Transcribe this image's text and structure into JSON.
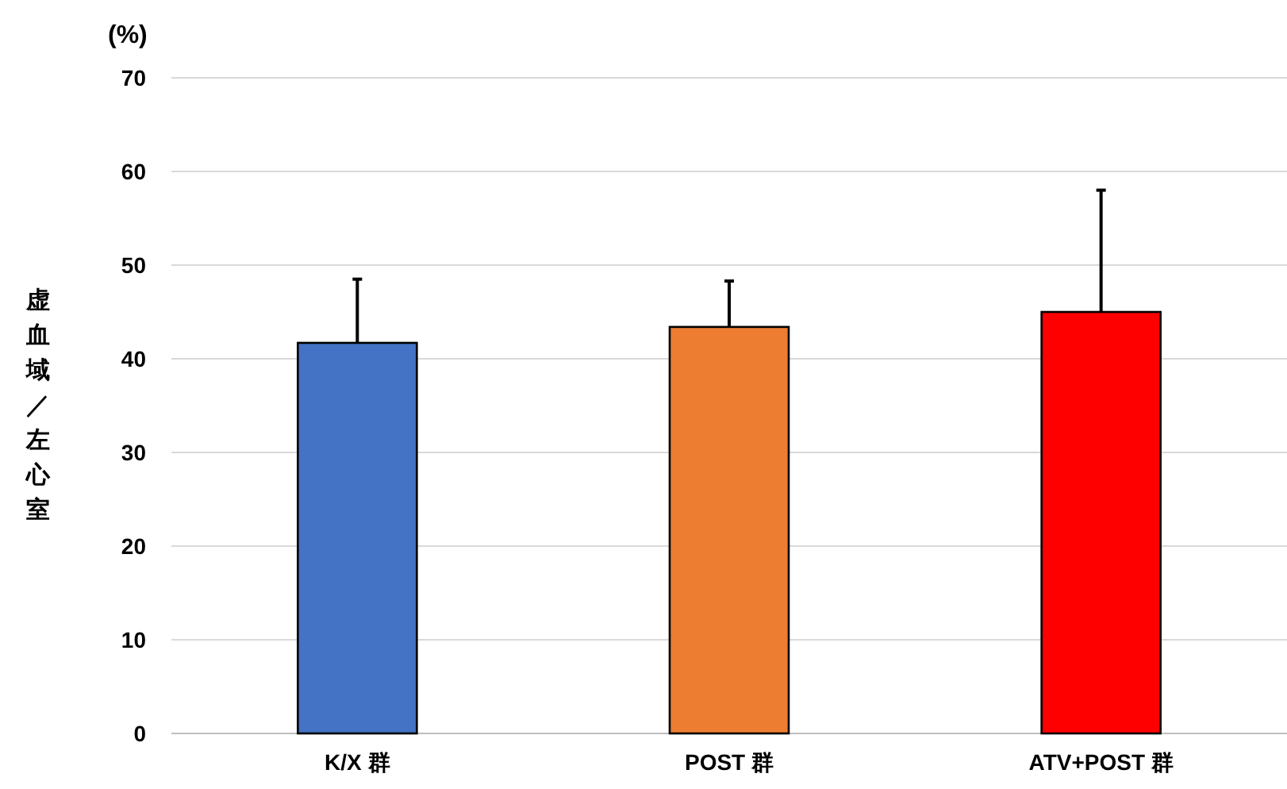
{
  "chart_data": {
    "type": "bar",
    "ylabel": "虚血域／左心室",
    "annotations": [
      "(%)"
    ],
    "categories": [
      "K/X 群",
      "POST 群",
      "ATV+POST 群"
    ],
    "values": [
      41.7,
      43.4,
      45.0
    ],
    "colors": [
      "#4472c4",
      "#ed7d31",
      "#ff0000"
    ],
    "errors": [
      [
        41.7,
        48.5
      ],
      [
        43.4,
        48.3
      ],
      [
        45.0,
        58.0
      ]
    ],
    "ylim": [
      0,
      70
    ],
    "yticks": [
      0,
      10,
      20,
      30,
      40,
      50,
      60,
      70
    ],
    "grid": "y"
  }
}
